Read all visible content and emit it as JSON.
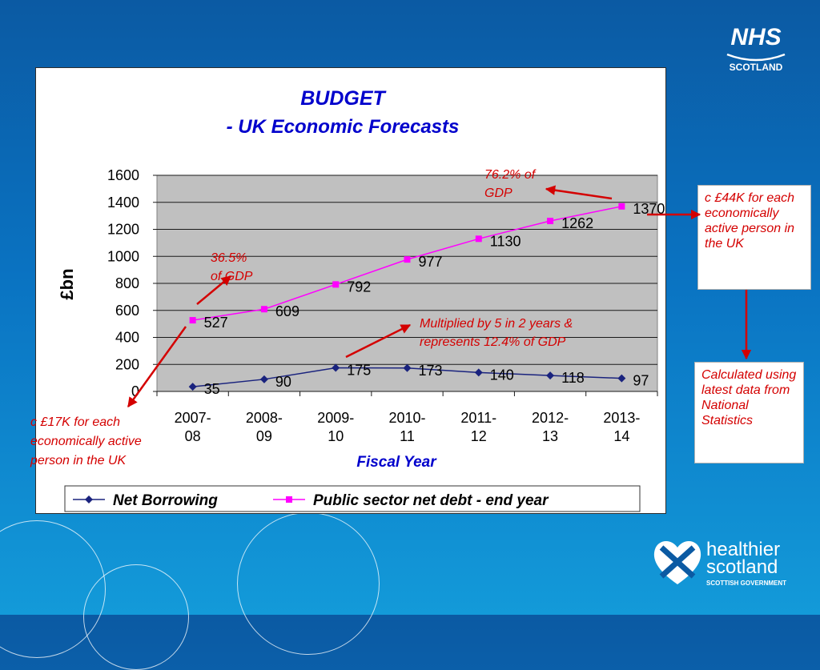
{
  "chart_data": {
    "type": "line",
    "title": "BUDGET",
    "subtitle": "- UK Economic Forecasts",
    "xlabel": "Fiscal Year",
    "ylabel": "£bn",
    "categories": [
      "2007-08",
      "2008-09",
      "2009-10",
      "2010-11",
      "2011-12",
      "2012-13",
      "2013-14"
    ],
    "ylim": [
      0,
      1600
    ],
    "yticks": [
      "0",
      "200",
      "400",
      "600",
      "800",
      "1000",
      "1200",
      "1400",
      "1600"
    ],
    "grid": true,
    "legend_position": "bottom",
    "series": [
      {
        "name": "Net Borrowing",
        "color": "#1a237e",
        "marker": "diamond",
        "values": [
          35,
          90,
          175,
          173,
          140,
          118,
          97
        ]
      },
      {
        "name": "Public sector net debt - end year",
        "color": "#ff00ff",
        "marker": "square",
        "values": [
          527,
          609,
          792,
          977,
          1130,
          1262,
          1370
        ]
      }
    ],
    "annotations": {
      "gdp_365": "36.5% of GDP",
      "gdp_762": "76.2% of GDP",
      "multiplied": "Multiplied by 5 in 2 years & represents 12.4% of GDP"
    }
  },
  "callouts": {
    "right_top": "c £44K for each economically active person in the UK",
    "right_bottom": "Calculated using latest data from National Statistics",
    "left_bottom": "c £17K for each economically active person in the UK"
  },
  "logos": {
    "nhs_mark": "NHS",
    "nhs_sub": "SCOTLAND",
    "hs_line1": "healthier",
    "hs_line2": "scotland",
    "hs_sub": "SCOTTISH GOVERNMENT"
  },
  "colors": {
    "plot_background": "#c0c0c0",
    "title": "#0000cc",
    "annotation": "#d40000"
  }
}
